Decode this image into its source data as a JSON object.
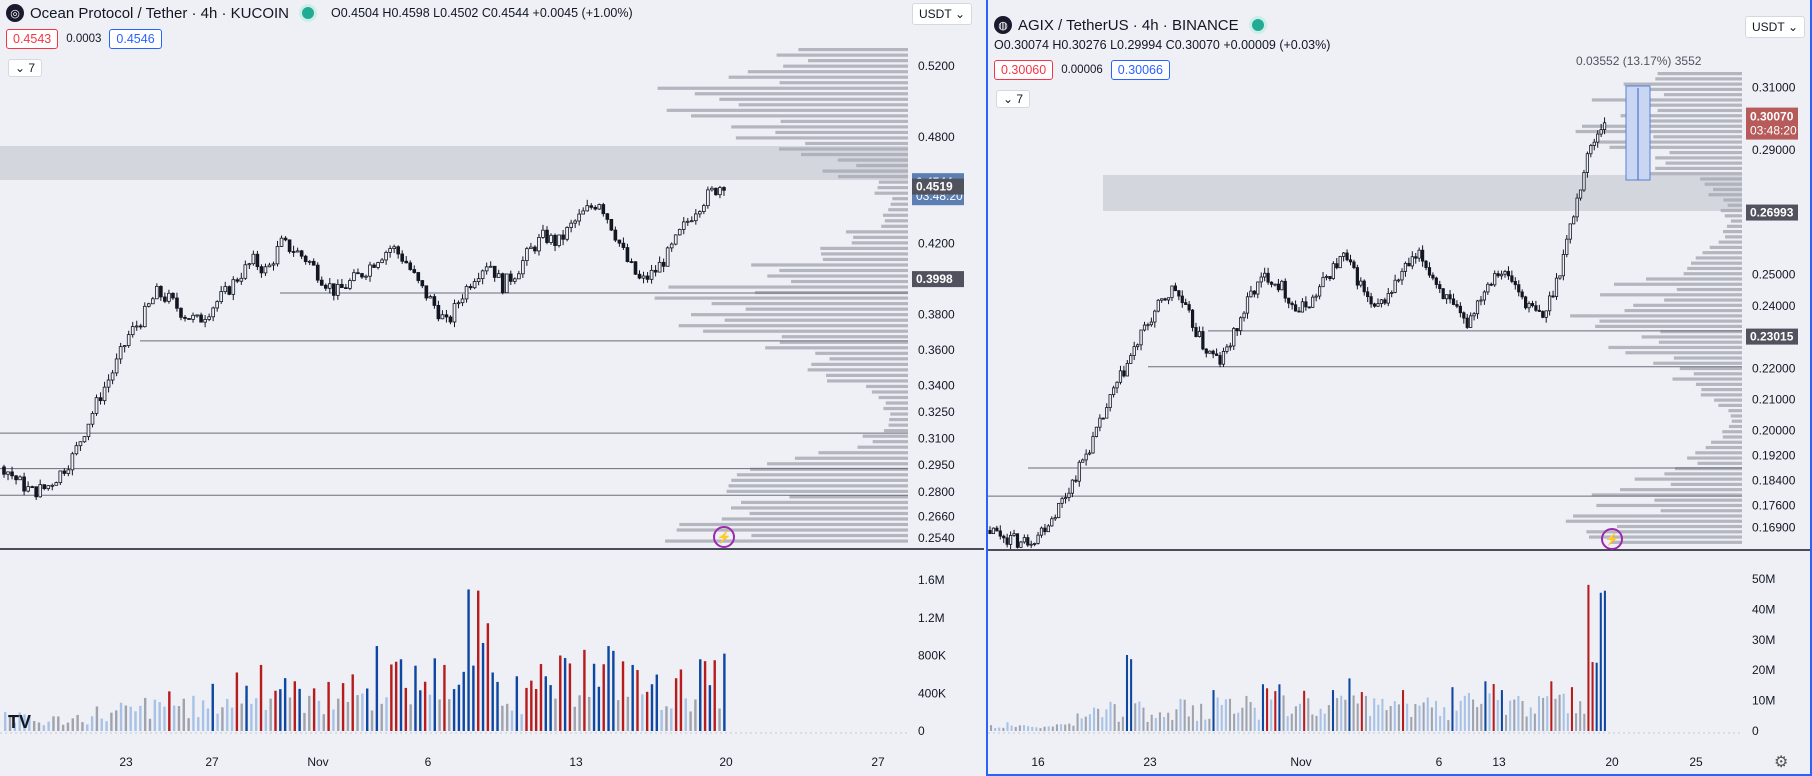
{
  "left": {
    "symbol_title": "Ocean Protocol / Tether · 4h · KUCOIN",
    "ohlc": "O0.4504 H0.4598 L0.4502 C0.4544 +0.0045 (+1.00%)",
    "bid": "0.4543",
    "spread": "0.0003",
    "ask": "0.4546",
    "indicator_count": "7",
    "currency": "USDT",
    "colors": {
      "up": "#131722",
      "down": "#131722",
      "vol_up": "#0d47a1",
      "vol_down": "#b71c1c"
    },
    "chart_data": {
      "type": "candlestick",
      "price_ticks": [
        "0.5200",
        "0.4800",
        "0.4544",
        "0.4519",
        "0.4200",
        "0.3998",
        "0.3800",
        "0.3600",
        "0.3400",
        "0.3250",
        "0.3100",
        "0.2950",
        "0.2800",
        "0.2660",
        "0.2540"
      ],
      "price_labels": {
        "last": "0.4544",
        "countdown": "03:48:20",
        "level_a": "0.4519",
        "level_b": "0.3998"
      },
      "volume_ticks": [
        "1.6M",
        "1.2M",
        "800K",
        "400K",
        "0"
      ],
      "x_ticks": [
        "23",
        "27",
        "Nov",
        "6",
        "13",
        "20",
        "27"
      ],
      "path": [
        0.294,
        0.286,
        0.28,
        0.282,
        0.29,
        0.3,
        0.318,
        0.335,
        0.35,
        0.368,
        0.378,
        0.392,
        0.388,
        0.38,
        0.376,
        0.384,
        0.392,
        0.402,
        0.41,
        0.404,
        0.42,
        0.416,
        0.41,
        0.4,
        0.392,
        0.398,
        0.404,
        0.412,
        0.418,
        0.41,
        0.396,
        0.386,
        0.374,
        0.39,
        0.402,
        0.41,
        0.396,
        0.404,
        0.416,
        0.424,
        0.42,
        0.43,
        0.438,
        0.444,
        0.428,
        0.41,
        0.398,
        0.404,
        0.414,
        0.428,
        0.44,
        0.448,
        0.454
      ],
      "volume": [
        200,
        150,
        180,
        220,
        260,
        300,
        350,
        420,
        380,
        500,
        620,
        700,
        560,
        480,
        520,
        600,
        900,
        760,
        840,
        700,
        1500,
        620,
        580,
        720,
        800,
        860,
        900,
        700,
        640,
        680,
        760,
        820
      ],
      "ylim": [
        0.25,
        0.53
      ]
    }
  },
  "right": {
    "symbol_title": "AGIX / TetherUS · 4h · BINANCE",
    "ohlc": "O0.30074 H0.30276 L0.29994 C0.30070 +0.00009 (+0.03%)",
    "bid": "0.30060",
    "spread": "0.00006",
    "ask": "0.30066",
    "indicator_count": "7",
    "currency": "USDT",
    "measure_label": "0.03552 (13.17%) 3552",
    "chart_data": {
      "type": "candlestick",
      "price_ticks": [
        "0.31000",
        "0.30070",
        "0.29000",
        "0.26993",
        "0.25000",
        "0.24000",
        "0.23015",
        "0.22000",
        "0.21000",
        "0.20000",
        "0.19200",
        "0.18400",
        "0.17600",
        "0.16900"
      ],
      "price_labels": {
        "last": "0.30070",
        "countdown": "03:48:20",
        "level_a": "0.26993",
        "level_b": "0.23015"
      },
      "volume_ticks": [
        "50M",
        "40M",
        "30M",
        "20M",
        "10M",
        "0"
      ],
      "x_ticks": [
        "16",
        "23",
        "Nov",
        "6",
        "13",
        "20",
        "25"
      ],
      "path": [
        0.168,
        0.166,
        0.164,
        0.166,
        0.172,
        0.18,
        0.19,
        0.2,
        0.212,
        0.222,
        0.232,
        0.24,
        0.246,
        0.236,
        0.226,
        0.222,
        0.232,
        0.244,
        0.25,
        0.246,
        0.238,
        0.242,
        0.25,
        0.256,
        0.248,
        0.238,
        0.244,
        0.252,
        0.256,
        0.248,
        0.24,
        0.234,
        0.244,
        0.252,
        0.248,
        0.24,
        0.236,
        0.25,
        0.27,
        0.29,
        0.3
      ],
      "volume": [
        2,
        3,
        2,
        4,
        3,
        6,
        8,
        10,
        26,
        8,
        9,
        12,
        10,
        14,
        11,
        12,
        16,
        13,
        15,
        10,
        14,
        18,
        12,
        11,
        16,
        14,
        12,
        15,
        13,
        17,
        14,
        12,
        20,
        18,
        15,
        50,
        48
      ],
      "ylim": [
        0.163,
        0.315
      ]
    }
  },
  "settings_icon": "gear-icon"
}
